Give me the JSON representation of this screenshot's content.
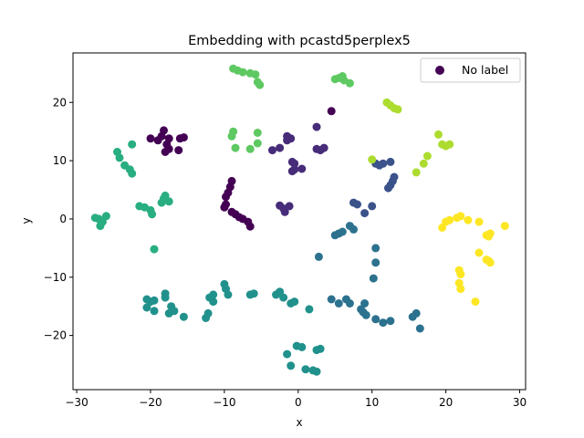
{
  "chart_data": {
    "type": "scatter",
    "title": "Embedding with pcastd5perplex5",
    "xlabel": "x",
    "ylabel": "y",
    "xlim": [
      -30.5,
      30.8
    ],
    "ylim": [
      -29.3,
      28.5
    ],
    "xticks": [
      -30,
      -20,
      -10,
      0,
      10,
      20,
      30
    ],
    "yticks": [
      -20,
      -10,
      0,
      10,
      20
    ],
    "grid": false,
    "legend": {
      "position": "top-right",
      "entries": [
        {
          "label": "No label",
          "color": "#440154"
        }
      ]
    },
    "colormap": "viridis",
    "series": [
      {
        "color": "#440154",
        "points": [
          [
            -20,
            13.8
          ],
          [
            -19,
            13.5
          ],
          [
            -18.5,
            14.2
          ],
          [
            -18.2,
            15.2
          ],
          [
            -17.8,
            12.8
          ],
          [
            -18,
            11.5
          ],
          [
            -17.5,
            12
          ],
          [
            -17.5,
            13.8
          ],
          [
            -16,
            13.8
          ],
          [
            -15.5,
            14
          ],
          [
            -16.2,
            11.8
          ],
          [
            -9,
            6.5
          ],
          [
            -9.2,
            5.5
          ],
          [
            -9.5,
            4.5
          ],
          [
            -9.8,
            3.8
          ],
          [
            -9.8,
            2.5
          ],
          [
            -10,
            2
          ],
          [
            -9,
            1.2
          ],
          [
            -8.5,
            0.8
          ],
          [
            -8,
            0.3
          ],
          [
            -7.5,
            0
          ],
          [
            -6.8,
            -0.5
          ],
          [
            -6.5,
            -1.3
          ],
          [
            4.5,
            18.5
          ]
        ]
      },
      {
        "color": "#472c7a",
        "points": [
          [
            -3.5,
            11.8
          ],
          [
            -2.5,
            12.2
          ],
          [
            -1.5,
            13.5
          ],
          [
            -1.5,
            14.2
          ],
          [
            -1,
            13.8
          ],
          [
            -0.8,
            9.8
          ],
          [
            -0.5,
            8.5
          ],
          [
            -0.8,
            8.2
          ],
          [
            0.5,
            8.6
          ],
          [
            -0.5,
            9.5
          ],
          [
            2.5,
            15.8
          ],
          [
            2.5,
            12
          ],
          [
            3,
            11.8
          ],
          [
            3.5,
            12.2
          ],
          [
            -2.5,
            2.3
          ],
          [
            -2,
            1.8
          ],
          [
            -1.8,
            1.2
          ],
          [
            -1.2,
            2.2
          ]
        ]
      },
      {
        "color": "#3b528b",
        "points": [
          [
            7.5,
            2.8
          ],
          [
            8,
            2.5
          ],
          [
            9,
            1
          ],
          [
            10,
            2.2
          ],
          [
            10.5,
            9.5
          ],
          [
            11,
            9.2
          ],
          [
            11.5,
            9.5
          ],
          [
            12.5,
            9.8
          ],
          [
            13,
            7.2
          ],
          [
            12.8,
            6.5
          ],
          [
            12.5,
            5.8
          ],
          [
            12.2,
            5.3
          ]
        ]
      },
      {
        "color": "#2c728e",
        "points": [
          [
            5,
            -2.8
          ],
          [
            5.5,
            -2.5
          ],
          [
            6,
            -2.2
          ],
          [
            7,
            -1.2
          ],
          [
            7.5,
            -1.8
          ],
          [
            10.5,
            -5
          ],
          [
            10.5,
            -7.5
          ],
          [
            10.2,
            -10.2
          ],
          [
            2.8,
            -6.5
          ],
          [
            4.5,
            -13.8
          ],
          [
            5.5,
            -14.5
          ],
          [
            6.5,
            -13.8
          ],
          [
            7,
            -14.5
          ],
          [
            8.5,
            -15.5
          ],
          [
            9,
            -14.5
          ],
          [
            8.8,
            -16
          ],
          [
            9.2,
            -16.5
          ],
          [
            10.5,
            -17.2
          ],
          [
            11.5,
            -17.8
          ],
          [
            12.5,
            -17.5
          ],
          [
            15.5,
            -16.8
          ],
          [
            16,
            -16.2
          ],
          [
            16.5,
            -18.8
          ]
        ]
      },
      {
        "color": "#21918c",
        "points": [
          [
            -20.5,
            -13.8
          ],
          [
            -20,
            -14.2
          ],
          [
            -20.5,
            -15.2
          ],
          [
            -19.5,
            -15.8
          ],
          [
            -19.5,
            -14
          ],
          [
            -18,
            -12.8
          ],
          [
            -18,
            -13.5
          ],
          [
            -17.2,
            -15
          ],
          [
            -17.5,
            -16.2
          ],
          [
            -16.8,
            -15.8
          ],
          [
            -15.5,
            -16.8
          ],
          [
            -12.5,
            -17
          ],
          [
            -12.2,
            -16.2
          ],
          [
            -12,
            -13.5
          ],
          [
            -11.5,
            -14.2
          ],
          [
            -11.5,
            -13
          ],
          [
            -10,
            -11.2
          ],
          [
            -9.8,
            -12
          ],
          [
            -9.5,
            -13
          ],
          [
            -6.5,
            -13
          ],
          [
            -6,
            -12.8
          ],
          [
            -3,
            -13
          ],
          [
            -2.5,
            -12.5
          ],
          [
            -2,
            -13.5
          ],
          [
            -1,
            -14.5
          ],
          [
            -0.5,
            -14.2
          ],
          [
            1.5,
            -15.5
          ],
          [
            -1.5,
            -23.2
          ],
          [
            -1,
            -25.2
          ],
          [
            -0.2,
            -21.8
          ],
          [
            0.5,
            -22
          ],
          [
            1,
            -25.8
          ],
          [
            2,
            -26
          ],
          [
            2.5,
            -26.2
          ],
          [
            2.5,
            -22.5
          ],
          [
            3,
            -22.3
          ]
        ]
      },
      {
        "color": "#28ae80",
        "points": [
          [
            -27.5,
            0.2
          ],
          [
            -27,
            0
          ],
          [
            -26.5,
            -0.5
          ],
          [
            -26.8,
            -1.2
          ],
          [
            -26,
            0.5
          ],
          [
            -21.5,
            2.2
          ],
          [
            -20.8,
            2
          ],
          [
            -20,
            1.5
          ],
          [
            -19.8,
            0.8
          ],
          [
            -18.5,
            2.8
          ],
          [
            -18.2,
            3.5
          ],
          [
            -18,
            4
          ],
          [
            -17.5,
            3
          ],
          [
            -19.5,
            -5.2
          ],
          [
            -24.5,
            11.5
          ],
          [
            -24.2,
            10.5
          ],
          [
            -23.5,
            9.2
          ],
          [
            -22.8,
            8.5
          ],
          [
            -22.5,
            7.8
          ],
          [
            -22.5,
            12.8
          ]
        ]
      },
      {
        "color": "#5ec962",
        "points": [
          [
            -8.8,
            25.8
          ],
          [
            -8.2,
            25.5
          ],
          [
            -7.5,
            25.2
          ],
          [
            -6.5,
            25
          ],
          [
            -5.8,
            24.8
          ],
          [
            -5.5,
            23.5
          ],
          [
            -5.2,
            23
          ],
          [
            -8.8,
            15
          ],
          [
            -9,
            14.2
          ],
          [
            -8.5,
            12.2
          ],
          [
            -6.5,
            12
          ],
          [
            -5.5,
            13
          ],
          [
            -5.5,
            14.8
          ],
          [
            5,
            24
          ],
          [
            5.5,
            24.2
          ],
          [
            6,
            24.5
          ],
          [
            6.2,
            23.8
          ],
          [
            7,
            23.3
          ]
        ]
      },
      {
        "color": "#addc30",
        "points": [
          [
            12,
            20
          ],
          [
            12.5,
            19.5
          ],
          [
            13,
            19
          ],
          [
            13.5,
            18.8
          ],
          [
            10,
            10.2
          ],
          [
            16,
            8
          ],
          [
            17,
            9.5
          ],
          [
            17.5,
            10.8
          ],
          [
            19,
            14.5
          ],
          [
            19.5,
            12.8
          ],
          [
            20,
            12.5
          ],
          [
            20.5,
            12.8
          ]
        ]
      },
      {
        "color": "#fde725",
        "points": [
          [
            19.5,
            -1.5
          ],
          [
            20,
            -0.5
          ],
          [
            20.5,
            -0.2
          ],
          [
            21.5,
            0.2
          ],
          [
            22,
            0.5
          ],
          [
            23,
            -0.2
          ],
          [
            24.5,
            -0.5
          ],
          [
            25.5,
            -2.8
          ],
          [
            26,
            -2.5
          ],
          [
            25.8,
            -3
          ],
          [
            28,
            -1.2
          ],
          [
            24.5,
            -5.8
          ],
          [
            25.5,
            -7
          ],
          [
            26,
            -7.5
          ],
          [
            25.8,
            -7.2
          ],
          [
            21.8,
            -8.8
          ],
          [
            22,
            -9.5
          ],
          [
            21.8,
            -11
          ],
          [
            22,
            -12
          ],
          [
            24,
            -14.2
          ]
        ]
      }
    ]
  }
}
